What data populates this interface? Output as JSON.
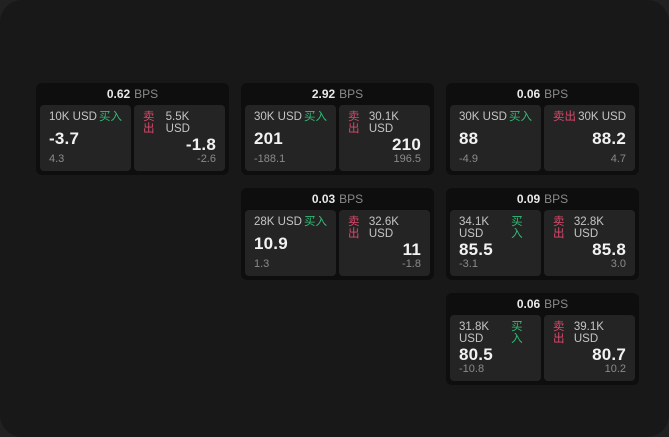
{
  "colors": {
    "buy_accent": "#2fbe76",
    "sell_accent": "#d9486c",
    "surface": "#181818",
    "card_bg": "#0e0e0e",
    "panel_bg": "#242424"
  },
  "cards": [
    {
      "bps": "0.62",
      "unit": "BPS",
      "buy": {
        "amount": "10K USD",
        "side": "买入",
        "value": "-3.7",
        "sub": "4.3"
      },
      "sell": {
        "side": "卖出",
        "amount": "5.5K USD",
        "value": "-1.8",
        "sub": "-2.6"
      }
    },
    {
      "bps": "2.92",
      "unit": "BPS",
      "buy": {
        "amount": "30K USD",
        "side": "买入",
        "value": "201",
        "sub": "-188.1"
      },
      "sell": {
        "side": "卖出",
        "amount": "30.1K USD",
        "value": "210",
        "sub": "196.5"
      }
    },
    {
      "bps": "0.06",
      "unit": "BPS",
      "buy": {
        "amount": "30K USD",
        "side": "买入",
        "value": "88",
        "sub": "-4.9"
      },
      "sell": {
        "side": "卖出",
        "amount": "30K USD",
        "value": "88.2",
        "sub": "4.7"
      }
    },
    {
      "bps": "0.03",
      "unit": "BPS",
      "buy": {
        "amount": "28K USD",
        "side": "买入",
        "value": "10.9",
        "sub": "1.3"
      },
      "sell": {
        "side": "卖出",
        "amount": "32.6K USD",
        "value": "11",
        "sub": "-1.8"
      }
    },
    {
      "bps": "0.09",
      "unit": "BPS",
      "buy": {
        "amount": "34.1K USD",
        "side": "买入",
        "value": "85.5",
        "sub": "-3.1"
      },
      "sell": {
        "side": "卖出",
        "amount": "32.8K USD",
        "value": "85.8",
        "sub": "3.0"
      }
    },
    {
      "bps": "0.06",
      "unit": "BPS",
      "buy": {
        "amount": "31.8K USD",
        "side": "买入",
        "value": "80.5",
        "sub": "-10.8"
      },
      "sell": {
        "side": "卖出",
        "amount": "39.1K USD",
        "value": "80.7",
        "sub": "10.2"
      }
    }
  ]
}
